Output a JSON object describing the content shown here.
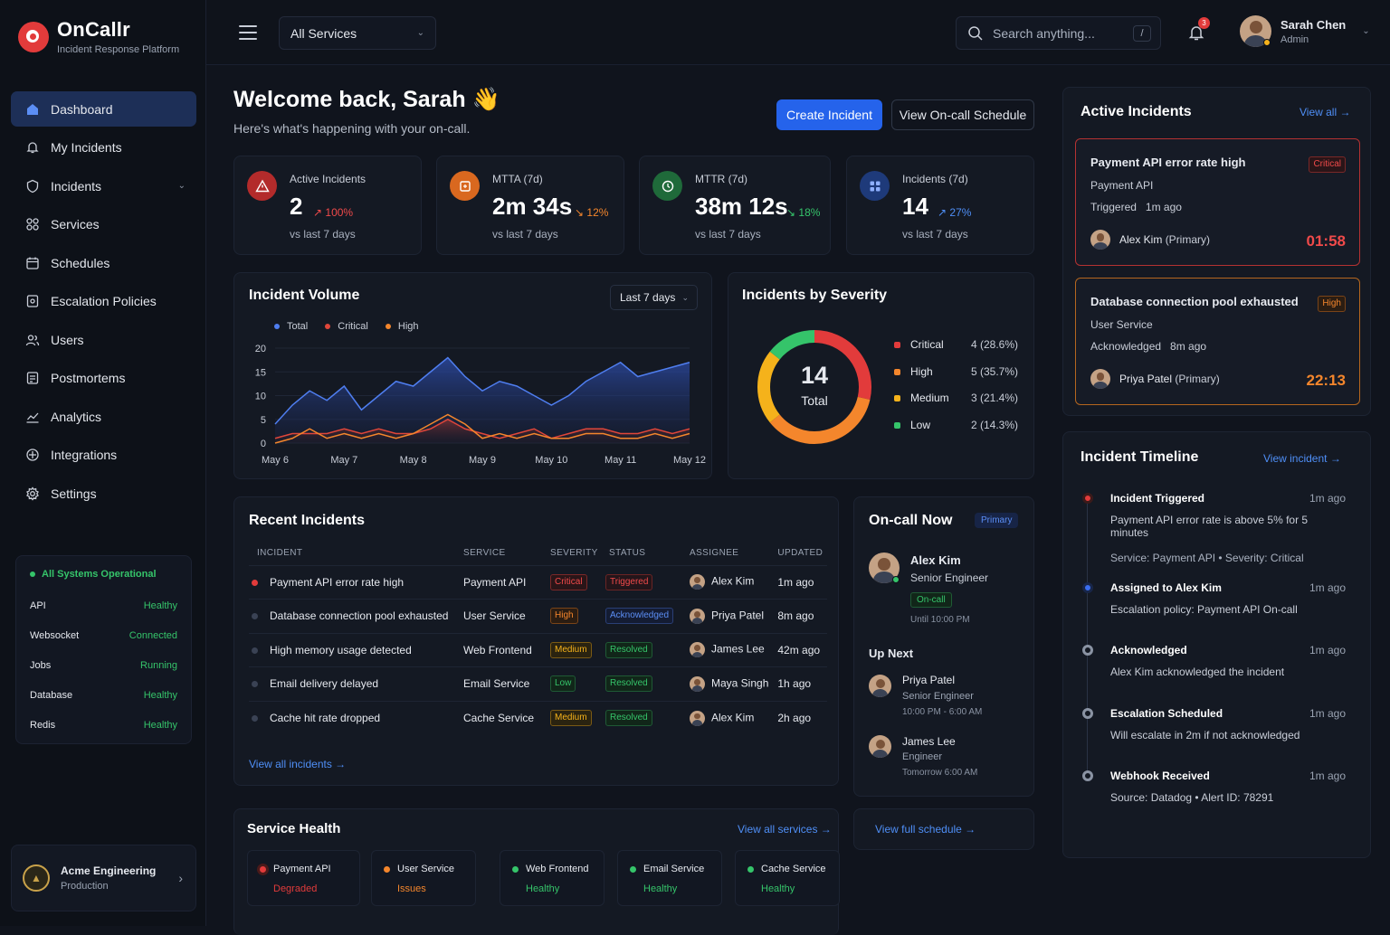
{
  "app": {
    "name": "OnCallr",
    "subtitle": "Incident Response Platform"
  },
  "sidebar": {
    "items": [
      {
        "label": "Dashboard",
        "icon": "home-icon"
      },
      {
        "label": "My Incidents",
        "icon": "bell-icon"
      },
      {
        "label": "Incidents",
        "icon": "shield-icon"
      },
      {
        "label": "Services",
        "icon": "grid-icon"
      },
      {
        "label": "Schedules",
        "icon": "calendar-icon"
      },
      {
        "label": "Escalation Policies",
        "icon": "escalation-icon"
      },
      {
        "label": "Users",
        "icon": "users-icon"
      },
      {
        "label": "Postmortems",
        "icon": "document-icon"
      },
      {
        "label": "Analytics",
        "icon": "chart-icon"
      },
      {
        "label": "Integrations",
        "icon": "puzzle-icon"
      },
      {
        "label": "Settings",
        "icon": "gear-icon"
      }
    ],
    "system_status": {
      "title": "All Systems Operational",
      "rows": [
        [
          "API",
          "Healthy"
        ],
        [
          "Websocket",
          "Connected"
        ],
        [
          "Jobs",
          "Running"
        ],
        [
          "Database",
          "Healthy"
        ],
        [
          "Redis",
          "Healthy"
        ]
      ]
    },
    "org": {
      "name": "Acme Engineering",
      "env": "Production"
    }
  },
  "topbar": {
    "service_filter": "All Services",
    "search_placeholder": "Search anything...",
    "search_key": "/",
    "notif_count": "3",
    "user": {
      "name": "Sarah Chen",
      "role": "Admin"
    }
  },
  "welcome": {
    "title": "Welcome back, Sarah 👋",
    "subtitle": "Here's what's happening with your on-call.",
    "create": "Create Incident",
    "schedule": "View On-call Schedule"
  },
  "stats": [
    {
      "label": "Active Incidents",
      "value": "2",
      "trend": "↗ 100%",
      "vs": "vs last 7 days",
      "color": "#e23b3b"
    },
    {
      "label": "MTTA (7d)",
      "value": "2m 34s",
      "trend": "↘ 12%",
      "vs": "vs last 7 days",
      "color": "#f4862c"
    },
    {
      "label": "MTTR (7d)",
      "value": "38m 12s",
      "trend": "↘ 18%",
      "vs": "vs last 7 days",
      "color": "#35c46a"
    },
    {
      "label": "Incidents (7d)",
      "value": "14",
      "trend": "↗ 27%",
      "vs": "vs last 7 days",
      "color": "#4f8ff7"
    }
  ],
  "volume": {
    "title": "Incident Volume",
    "range": "Last 7 days",
    "legend": [
      "Total",
      "Critical",
      "High"
    ]
  },
  "chart_data": {
    "type": "area",
    "title": "Incident Volume",
    "categories": [
      "May 6",
      "May 7",
      "May 8",
      "May 9",
      "May 10",
      "May 11",
      "May 12"
    ],
    "x": [
      0,
      0.5,
      1,
      1.5,
      2,
      2.5,
      3,
      3.5,
      4,
      4.5,
      5,
      5.5,
      6,
      6.5,
      7,
      7.5,
      8,
      8.5,
      9,
      9.5,
      10,
      10.5,
      11,
      11.5,
      12
    ],
    "series": [
      {
        "name": "Total",
        "color": "#4f7ef0",
        "values": [
          4,
          8,
          11,
          9,
          12,
          7,
          10,
          13,
          12,
          15,
          18,
          14,
          11,
          13,
          12,
          10,
          8,
          10,
          13,
          15,
          17,
          14,
          15,
          16,
          17
        ]
      },
      {
        "name": "Critical",
        "color": "#e0463a",
        "values": [
          1,
          2,
          2,
          2,
          3,
          2,
          3,
          2,
          2,
          3,
          5,
          3,
          2,
          1,
          2,
          3,
          1,
          2,
          3,
          3,
          2,
          2,
          3,
          2,
          3
        ]
      },
      {
        "name": "High",
        "color": "#f4862c",
        "values": [
          0,
          1,
          3,
          1,
          2,
          1,
          2,
          1,
          2,
          4,
          6,
          4,
          1,
          2,
          1,
          2,
          1,
          1,
          2,
          2,
          1,
          1,
          2,
          1,
          2
        ]
      }
    ],
    "yticks": [
      0,
      5,
      10,
      15,
      20
    ],
    "ylim": [
      0,
      20
    ]
  },
  "severity": {
    "title": "Incidents by Severity",
    "total": "14",
    "total_label": "Total",
    "rows": [
      {
        "name": "Critical",
        "count": 4,
        "label": "4 (28.6%)",
        "color": "#e23b3b"
      },
      {
        "name": "High",
        "count": 5,
        "label": "5 (35.7%)",
        "color": "#f4862c"
      },
      {
        "name": "Medium",
        "count": 3,
        "label": "3 (21.4%)",
        "color": "#f5b21b"
      },
      {
        "name": "Low",
        "count": 2,
        "label": "2 (14.3%)",
        "color": "#35c46a"
      }
    ]
  },
  "recent": {
    "title": "Recent Incidents",
    "headers": [
      "INCIDENT",
      "SERVICE",
      "SEVERITY",
      "STATUS",
      "ASSIGNEE",
      "UPDATED"
    ],
    "view_all": "View all incidents →",
    "rows": [
      [
        "Payment API error rate high",
        "Payment API",
        "Critical",
        "Triggered",
        "Alex Kim",
        "1m ago"
      ],
      [
        "Database connection pool exhausted",
        "User Service",
        "High",
        "Acknowledged",
        "Priya Patel",
        "8m ago"
      ],
      [
        "High memory usage detected",
        "Web Frontend",
        "Medium",
        "Resolved",
        "James Lee",
        "42m ago"
      ],
      [
        "Email delivery delayed",
        "Email Service",
        "Low",
        "Resolved",
        "Maya Singh",
        "1h ago"
      ],
      [
        "Cache hit rate dropped",
        "Cache Service",
        "Medium",
        "Resolved",
        "Alex Kim",
        "2h ago"
      ]
    ]
  },
  "oncall": {
    "title": "On-call Now",
    "badge": "Primary",
    "name": "Alex Kim",
    "role": "Senior Engineer",
    "status": "On-call",
    "until": "Until 10:00 PM",
    "next_title": "Up Next",
    "next": [
      {
        "name": "Priya Patel",
        "role": "Senior Engineer",
        "time": "10:00 PM - 6:00 AM"
      },
      {
        "name": "James Lee",
        "role": "Engineer",
        "time": "Tomorrow 6:00 AM"
      }
    ],
    "link": "View full schedule →"
  },
  "health": {
    "title": "Service Health",
    "link": "View all services →",
    "services": [
      {
        "name": "Payment API",
        "status": "Degraded",
        "color": "#e23b3b"
      },
      {
        "name": "User Service",
        "status": "Issues",
        "color": "#f4862c"
      },
      {
        "name": "Web Frontend",
        "status": "Healthy",
        "color": "#35c46a"
      },
      {
        "name": "Email Service",
        "status": "Healthy",
        "color": "#35c46a"
      },
      {
        "name": "Cache Service",
        "status": "Healthy",
        "color": "#35c46a"
      }
    ]
  },
  "active": {
    "title": "Active Incidents",
    "link": "View all →",
    "items": [
      {
        "title": "Payment API error rate high",
        "sev": "Critical",
        "service": "Payment API",
        "state": "Triggered   1m ago",
        "who": "Alex Kim",
        "role": "(Primary)",
        "timer": "01:58"
      },
      {
        "title": "Database connection pool exhausted",
        "sev": "High",
        "service": "User Service",
        "state": "Acknowledged   8m ago",
        "who": "Priya Patel",
        "role": "(Primary)",
        "timer": "22:13"
      }
    ]
  },
  "timeline": {
    "title": "Incident Timeline",
    "link": "View incident →",
    "items": [
      {
        "t": "Incident Triggered",
        "time": "1m ago",
        "d": "Payment API error rate is above 5% for 5 minutes",
        "m": "Service: Payment API  •  Severity: Critical"
      },
      {
        "t": "Assigned to Alex Kim",
        "time": "1m ago",
        "d": "Escalation policy: Payment API On-call",
        "m": ""
      },
      {
        "t": "Acknowledged",
        "time": "1m ago",
        "d": "Alex Kim acknowledged the incident",
        "m": ""
      },
      {
        "t": "Escalation Scheduled",
        "time": "1m ago",
        "d": "Will escalate in 2m if not acknowledged",
        "m": ""
      },
      {
        "t": "Webhook Received",
        "time": "1m ago",
        "d": "Source: Datadog  •  Alert ID: 78291",
        "m": ""
      }
    ]
  }
}
